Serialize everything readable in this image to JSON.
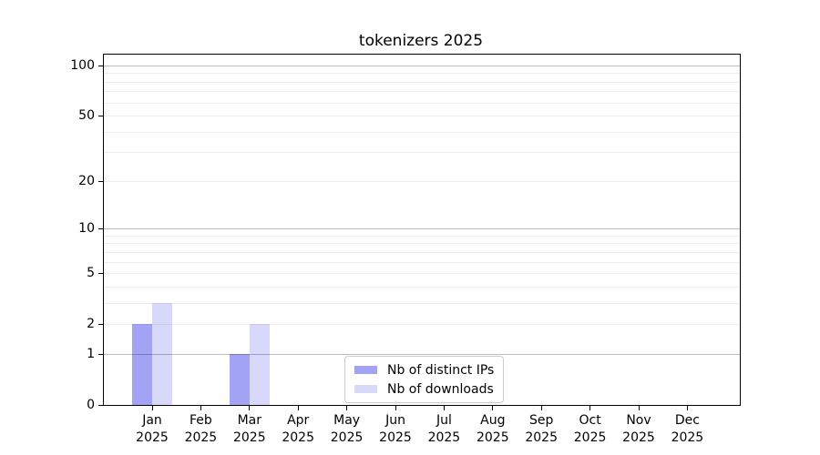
{
  "chart_data": {
    "type": "bar",
    "title": "tokenizers 2025",
    "categories": [
      {
        "month": "Jan",
        "year": "2025"
      },
      {
        "month": "Feb",
        "year": "2025"
      },
      {
        "month": "Mar",
        "year": "2025"
      },
      {
        "month": "Apr",
        "year": "2025"
      },
      {
        "month": "May",
        "year": "2025"
      },
      {
        "month": "Jun",
        "year": "2025"
      },
      {
        "month": "Jul",
        "year": "2025"
      },
      {
        "month": "Aug",
        "year": "2025"
      },
      {
        "month": "Sep",
        "year": "2025"
      },
      {
        "month": "Oct",
        "year": "2025"
      },
      {
        "month": "Nov",
        "year": "2025"
      },
      {
        "month": "Dec",
        "year": "2025"
      }
    ],
    "series": [
      {
        "key": "distinct-ips",
        "name": "Nb of distinct IPs",
        "color": "#a3a3f6",
        "values": [
          2,
          0,
          1,
          0,
          0,
          0,
          0,
          0,
          0,
          0,
          0,
          0
        ]
      },
      {
        "key": "downloads",
        "name": "Nb of downloads",
        "color": "#d8d8fb",
        "values": [
          3,
          0,
          2,
          0,
          0,
          0,
          0,
          0,
          0,
          0,
          0,
          0
        ]
      }
    ],
    "y_scale": "log10(1+x)",
    "y_ticks": [
      0,
      1,
      2,
      5,
      10,
      20,
      50,
      100
    ],
    "grid_major": [
      1,
      10,
      100
    ],
    "grid_minor": [
      2,
      3,
      4,
      5,
      6,
      7,
      8,
      9,
      20,
      30,
      40,
      50,
      60,
      70,
      80,
      90
    ],
    "ylim_top": 116,
    "grid": "on",
    "legend_position": "lower center",
    "xlabel": "",
    "ylabel": ""
  }
}
